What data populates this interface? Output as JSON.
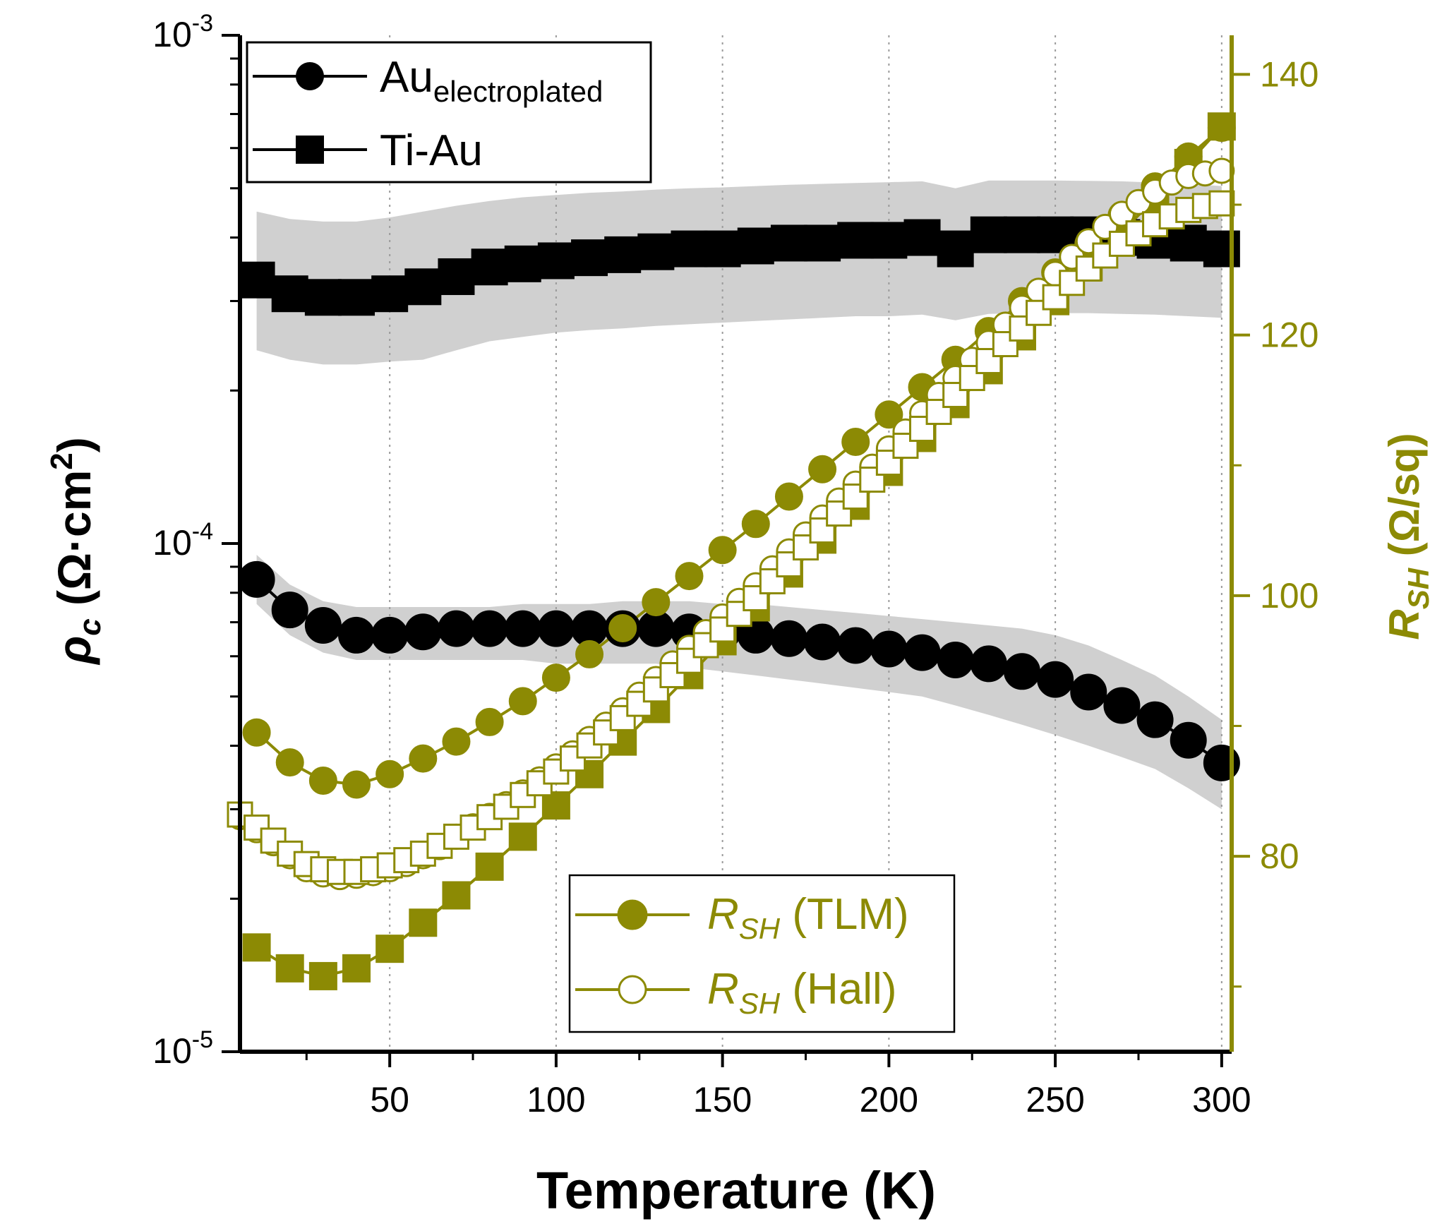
{
  "chart_data": {
    "type": "scatter",
    "xlabel": "Temperature (K)",
    "ylabel_left": {
      "symbol": "ρ",
      "sub": "c",
      "unit_pre": " (Ω·cm",
      "unit_sup": "2",
      "unit_post": ")"
    },
    "ylabel_right": {
      "symbol": "R",
      "sub": "SH",
      "unit": " (Ω/sq)"
    },
    "xlim": [
      5,
      303
    ],
    "ylim_left": [
      1e-05,
      0.001
    ],
    "ylim_right": [
      65,
      143
    ],
    "x_ticks": [
      50,
      100,
      150,
      200,
      250,
      300
    ],
    "x_tick_labels": [
      "50",
      "100",
      "150",
      "200",
      "250",
      "300"
    ],
    "y_left_major_ticks": [
      {
        "base": "10",
        "exp": "-5"
      },
      {
        "base": "10",
        "exp": "-4"
      },
      {
        "base": "10",
        "exp": "-3"
      }
    ],
    "y_right_ticks": [
      80,
      100,
      120,
      140
    ],
    "y_right_tick_labels": [
      "80",
      "100",
      "120",
      "140"
    ],
    "colors": {
      "black": "#000000",
      "olive": "#8c8a04",
      "band": "#c8c8c8",
      "grid": "#9a9a9a"
    },
    "legend_left": [
      {
        "text": "Au",
        "sub": "electroplated",
        "marker": "circle"
      },
      {
        "text": "Ti-Au",
        "sub": "",
        "marker": "square"
      }
    ],
    "legend_right": [
      {
        "symbol": "R",
        "sub": "SH",
        "text": " (TLM)",
        "marker": "filled-circle"
      },
      {
        "symbol": "R",
        "sub": "SH",
        "text": " (Hall)",
        "marker": "open-circle"
      }
    ],
    "series": [
      {
        "name": "Au electroplated",
        "axis": "left",
        "marker": "circle",
        "color": "black",
        "x": [
          10,
          20,
          30,
          40,
          50,
          60,
          70,
          80,
          90,
          100,
          110,
          120,
          130,
          140,
          150,
          160,
          170,
          180,
          190,
          200,
          210,
          220,
          230,
          240,
          250,
          260,
          270,
          280,
          290,
          300
        ],
        "y": [
          8.5e-05,
          7.4e-05,
          6.9e-05,
          6.6e-05,
          6.6e-05,
          6.7e-05,
          6.8e-05,
          6.8e-05,
          6.8e-05,
          6.8e-05,
          6.8e-05,
          6.8e-05,
          6.8e-05,
          6.7e-05,
          6.7e-05,
          6.6e-05,
          6.5e-05,
          6.4e-05,
          6.3e-05,
          6.2e-05,
          6.1e-05,
          5.9e-05,
          5.8e-05,
          5.6e-05,
          5.4e-05,
          5.1e-05,
          4.8e-05,
          4.5e-05,
          4.1e-05,
          3.7e-05
        ],
        "band_lower": [
          7.6e-05,
          6.6e-05,
          6.1e-05,
          5.9e-05,
          5.9e-05,
          5.9e-05,
          5.9e-05,
          5.9e-05,
          5.9e-05,
          5.8e-05,
          5.8e-05,
          5.8e-05,
          5.8e-05,
          5.7e-05,
          5.6e-05,
          5.5e-05,
          5.4e-05,
          5.3e-05,
          5.2e-05,
          5.1e-05,
          5e-05,
          4.8e-05,
          4.6e-05,
          4.4e-05,
          4.2e-05,
          4e-05,
          3.8e-05,
          3.6e-05,
          3.3e-05,
          3e-05
        ],
        "band_upper": [
          9.5e-05,
          8.3e-05,
          7.7e-05,
          7.5e-05,
          7.5e-05,
          7.5e-05,
          7.5e-05,
          7.5e-05,
          7.6e-05,
          7.6e-05,
          7.6e-05,
          7.7e-05,
          7.7e-05,
          7.7e-05,
          7.6e-05,
          7.6e-05,
          7.5e-05,
          7.4e-05,
          7.3e-05,
          7.2e-05,
          7.1e-05,
          7e-05,
          6.9e-05,
          6.8e-05,
          6.6e-05,
          6.3e-05,
          5.9e-05,
          5.5e-05,
          5e-05,
          4.5e-05
        ]
      },
      {
        "name": "Ti-Au",
        "axis": "left",
        "marker": "square",
        "color": "black",
        "x": [
          10,
          20,
          30,
          40,
          50,
          60,
          70,
          80,
          90,
          100,
          110,
          120,
          130,
          140,
          150,
          160,
          170,
          180,
          190,
          200,
          210,
          220,
          230,
          240,
          250,
          260,
          270,
          280,
          290,
          300
        ],
        "y": [
          0.00033,
          0.00031,
          0.000305,
          0.000305,
          0.00031,
          0.00032,
          0.000335,
          0.00035,
          0.000355,
          0.00036,
          0.000365,
          0.00037,
          0.000375,
          0.00038,
          0.00038,
          0.000385,
          0.00039,
          0.00039,
          0.000395,
          0.000395,
          0.0004,
          0.00038,
          0.000405,
          0.000405,
          0.000405,
          0.000405,
          0.0004,
          0.000395,
          0.00039,
          0.00038
        ],
        "band_lower": [
          0.00024,
          0.00023,
          0.000225,
          0.000225,
          0.000228,
          0.00023,
          0.00024,
          0.00025,
          0.000255,
          0.00026,
          0.000263,
          0.000265,
          0.000268,
          0.00027,
          0.000272,
          0.000274,
          0.000276,
          0.000278,
          0.00028,
          0.00028,
          0.000282,
          0.000275,
          0.000283,
          0.000284,
          0.000284,
          0.000284,
          0.000283,
          0.000282,
          0.00028,
          0.000278
        ],
        "band_upper": [
          0.00045,
          0.000435,
          0.00043,
          0.00043,
          0.000438,
          0.00045,
          0.000462,
          0.000472,
          0.00048,
          0.000485,
          0.00049,
          0.000493,
          0.000497,
          0.0005,
          0.000502,
          0.000505,
          0.000508,
          0.00051,
          0.000512,
          0.000514,
          0.000516,
          0.0005,
          0.000518,
          0.000518,
          0.000518,
          0.000517,
          0.000516,
          0.000513,
          0.00051,
          0.000505
        ]
      },
      {
        "name": "RSH (TLM) - Au electroplated",
        "axis": "right",
        "marker": "circle",
        "fill": "filled",
        "color": "olive",
        "x": [
          10,
          20,
          30,
          40,
          50,
          60,
          70,
          80,
          90,
          100,
          110,
          120,
          130,
          140,
          150,
          160,
          170,
          180,
          190,
          200,
          210,
          220,
          230,
          240,
          250,
          260,
          270,
          280,
          290,
          300
        ],
        "y": [
          89.5,
          87.2,
          85.8,
          85.5,
          86.3,
          87.5,
          88.8,
          90.3,
          91.9,
          93.7,
          95.5,
          97.5,
          99.5,
          101.5,
          103.5,
          105.5,
          107.6,
          109.7,
          111.8,
          113.9,
          116.0,
          118.1,
          120.3,
          122.6,
          124.8,
          127.0,
          129.2,
          131.4,
          133.7,
          135.9
        ]
      },
      {
        "name": "RSH (TLM) - Ti-Au",
        "axis": "right",
        "marker": "square",
        "fill": "filled",
        "color": "olive",
        "x": [
          10,
          20,
          30,
          40,
          50,
          60,
          70,
          80,
          90,
          100,
          110,
          120,
          130,
          140,
          150,
          160,
          170,
          180,
          190,
          200,
          210,
          220,
          230,
          240,
          250,
          260,
          270,
          280,
          290,
          300
        ],
        "y": [
          73.0,
          71.4,
          70.8,
          71.4,
          72.9,
          74.9,
          77.0,
          79.2,
          81.5,
          83.9,
          86.3,
          88.8,
          91.3,
          93.9,
          96.5,
          99.1,
          101.7,
          104.3,
          106.9,
          109.5,
          112.1,
          114.7,
          117.3,
          119.9,
          122.6,
          125.2,
          127.9,
          130.5,
          133.2,
          136.0
        ]
      },
      {
        "name": "RSH (Hall) - Au electroplated",
        "axis": "right",
        "marker": "circle",
        "fill": "open",
        "color": "olive",
        "x": [
          5,
          10,
          15,
          20,
          25,
          30,
          35,
          40,
          45,
          50,
          55,
          60,
          65,
          70,
          75,
          80,
          85,
          90,
          95,
          100,
          105,
          110,
          115,
          120,
          125,
          130,
          135,
          140,
          145,
          150,
          155,
          160,
          165,
          170,
          175,
          180,
          185,
          190,
          195,
          200,
          205,
          210,
          215,
          220,
          225,
          230,
          235,
          240,
          245,
          250,
          255,
          260,
          265,
          270,
          275,
          280,
          285,
          290,
          295,
          300
        ],
        "y": [
          83.0,
          82.0,
          81.0,
          80.0,
          79.0,
          78.6,
          78.4,
          78.5,
          78.7,
          79.0,
          79.4,
          80.0,
          80.7,
          81.5,
          82.3,
          83.1,
          84.0,
          84.9,
          85.9,
          86.9,
          87.9,
          89.0,
          90.1,
          91.2,
          92.4,
          93.6,
          94.8,
          96.0,
          97.2,
          98.4,
          99.6,
          100.8,
          102.1,
          103.4,
          104.7,
          106.0,
          107.3,
          108.6,
          109.9,
          111.3,
          112.6,
          114.0,
          115.4,
          116.7,
          118.1,
          119.4,
          120.8,
          122.1,
          123.4,
          124.7,
          126.0,
          127.2,
          128.3,
          129.3,
          130.2,
          131.0,
          131.7,
          132.2,
          132.4,
          132.6
        ]
      },
      {
        "name": "RSH (Hall) - Ti-Au",
        "axis": "right",
        "marker": "square",
        "fill": "open",
        "color": "olive",
        "x": [
          5,
          10,
          15,
          20,
          25,
          30,
          35,
          40,
          45,
          50,
          55,
          60,
          65,
          70,
          75,
          80,
          85,
          90,
          95,
          100,
          105,
          110,
          115,
          120,
          125,
          130,
          135,
          140,
          145,
          150,
          155,
          160,
          165,
          170,
          175,
          180,
          185,
          190,
          195,
          200,
          205,
          210,
          215,
          220,
          225,
          230,
          235,
          240,
          245,
          250,
          255,
          260,
          265,
          270,
          275,
          280,
          285,
          290,
          295,
          300
        ],
        "y": [
          83.2,
          82.2,
          81.2,
          80.2,
          79.4,
          79.0,
          78.8,
          78.8,
          79.0,
          79.3,
          79.7,
          80.2,
          80.8,
          81.5,
          82.2,
          83.0,
          83.8,
          84.7,
          85.6,
          86.5,
          87.5,
          88.5,
          89.5,
          90.6,
          91.7,
          92.8,
          93.9,
          95.0,
          96.2,
          97.4,
          98.6,
          99.8,
          101.1,
          102.4,
          103.7,
          105.0,
          106.3,
          107.6,
          108.9,
          110.2,
          111.5,
          112.8,
          114.1,
          115.4,
          116.7,
          118.0,
          119.3,
          120.5,
          121.7,
          122.9,
          124.0,
          125.1,
          126.1,
          127.0,
          127.8,
          128.5,
          129.1,
          129.6,
          129.9,
          130.1
        ]
      }
    ]
  }
}
